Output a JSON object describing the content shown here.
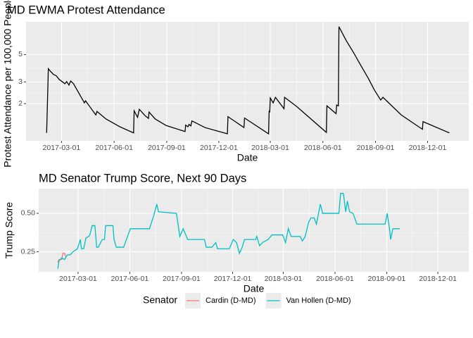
{
  "chart_data": [
    {
      "type": "line",
      "title": "MD EWMA Protest Attendance",
      "x_label": "Date",
      "y_label": "Protest Attendance per 100,000 People",
      "log_y": true,
      "grid": true,
      "color": "#000000",
      "xlim": [
        "2016-12-29",
        "2019-02-11"
      ],
      "xticks": [
        "2017-03-01",
        "2017-06-01",
        "2017-09-01",
        "2017-12-01",
        "2018-03-01",
        "2018-06-01",
        "2018-09-01",
        "2018-12-01"
      ],
      "ylim": [
        1,
        9.2
      ],
      "yticks": [
        2,
        3,
        5
      ],
      "x": [
        "2017-02-03",
        "2017-02-06",
        "2017-02-10",
        "2017-02-15",
        "2017-02-20",
        "2017-02-25",
        "2017-03-02",
        "2017-03-07",
        "2017-03-10",
        "2017-03-14",
        "2017-03-17",
        "2017-03-22",
        "2017-04-08",
        "2017-04-10",
        "2017-04-12",
        "2017-04-30",
        "2017-05-02",
        "2017-05-18",
        "2017-06-11",
        "2017-07-05",
        "2017-07-06",
        "2017-07-12",
        "2017-07-15",
        "2017-07-25",
        "2017-07-31",
        "2017-08-01",
        "2017-08-12",
        "2017-08-31",
        "2017-10-03",
        "2017-10-04",
        "2017-10-08",
        "2017-10-10",
        "2017-10-13",
        "2017-10-15",
        "2017-11-07",
        "2017-12-16",
        "2017-12-17",
        "2018-01-14",
        "2018-01-15",
        "2018-02-26",
        "2018-02-27",
        "2018-02-28",
        "2018-03-01",
        "2018-03-06",
        "2018-03-10",
        "2018-03-25",
        "2018-03-26",
        "2018-04-16",
        "2018-06-07",
        "2018-06-08",
        "2018-06-24",
        "2018-06-25",
        "2018-06-28",
        "2018-06-29",
        "2018-07-12",
        "2018-07-25",
        "2018-08-06",
        "2018-08-19",
        "2018-08-30",
        "2018-09-10",
        "2018-09-14",
        "2018-10-16",
        "2018-11-22",
        "2018-11-23",
        "2019-01-08"
      ],
      "values": [
        1.16,
        3.84,
        3.64,
        3.45,
        3.36,
        3.14,
        3.02,
        2.9,
        3.02,
        2.83,
        3.05,
        2.9,
        2.11,
        2.03,
        2.11,
        1.62,
        1.73,
        1.5,
        1.3,
        1.16,
        1.75,
        1.55,
        1.8,
        1.6,
        1.52,
        1.71,
        1.5,
        1.33,
        1.19,
        1.34,
        1.3,
        1.36,
        1.32,
        1.45,
        1.28,
        1.14,
        1.57,
        1.28,
        1.53,
        1.14,
        1.75,
        1.7,
        2.22,
        2.03,
        2.25,
        1.82,
        2.25,
        1.9,
        1.17,
        1.92,
        1.66,
        1.95,
        1.92,
        8.4,
        6.46,
        5.14,
        4.1,
        3.23,
        2.58,
        2.14,
        2.25,
        1.62,
        1.24,
        1.43,
        1.16
      ]
    },
    {
      "type": "line",
      "title": "MD Senator Trump Score, Next 90 Days",
      "x_label": "Date",
      "y_label": "Trump Score",
      "grid": true,
      "legend": "bottom",
      "legend_title": "Senator",
      "xlim": [
        "2016-12-21",
        "2019-01-25"
      ],
      "xticks": [
        "2017-03-01",
        "2017-06-01",
        "2017-09-01",
        "2017-12-01",
        "2018-03-01",
        "2018-06-01",
        "2018-09-01",
        "2018-12-01"
      ],
      "ylim": [
        0.12,
        0.66
      ],
      "yticks": [
        0.25,
        {
          "value": 0.5,
          "label": "0.50"
        }
      ],
      "series": [
        {
          "name": "Cardin (D-MD)",
          "color": "#F8766D",
          "x": [
            "2017-01-24",
            "2017-01-26",
            "2017-01-31",
            "2017-02-02",
            "2017-02-05",
            "2017-02-07"
          ],
          "values": [
            0.18,
            0.2,
            0.2,
            0.24,
            0.24,
            0.22
          ]
        },
        {
          "name": "Van Hollen (D-MD)",
          "color": "#00BFC4",
          "x": [
            "2017-01-24",
            "2017-01-26",
            "2017-01-31",
            "2017-02-05",
            "2017-02-10",
            "2017-02-15",
            "2017-02-20",
            "2017-02-28",
            "2017-03-05",
            "2017-03-07",
            "2017-03-11",
            "2017-03-15",
            "2017-03-20",
            "2017-03-22",
            "2017-03-26",
            "2017-03-31",
            "2017-04-03",
            "2017-04-06",
            "2017-04-13",
            "2017-04-17",
            "2017-04-19",
            "2017-05-02",
            "2017-05-04",
            "2017-05-08",
            "2017-05-21",
            "2017-06-02",
            "2017-07-06",
            "2017-07-14",
            "2017-07-19",
            "2017-07-22",
            "2017-08-23",
            "2017-08-29",
            "2017-09-04",
            "2017-09-12",
            "2017-10-12",
            "2017-10-15",
            "2017-10-25",
            "2017-11-01",
            "2017-11-04",
            "2017-11-14",
            "2017-11-19",
            "2017-11-25",
            "2017-12-02",
            "2017-12-08",
            "2017-12-13",
            "2017-12-18",
            "2017-12-22",
            "2018-01-11",
            "2018-01-13",
            "2018-01-16",
            "2018-01-18",
            "2018-01-23",
            "2018-02-02",
            "2018-02-09",
            "2018-02-28",
            "2018-03-05",
            "2018-03-10",
            "2018-03-15",
            "2018-03-31",
            "2018-04-04",
            "2018-04-09",
            "2018-04-15",
            "2018-04-19",
            "2018-04-25",
            "2018-04-29",
            "2018-05-06",
            "2018-05-10",
            "2018-06-08",
            "2018-06-11",
            "2018-06-16",
            "2018-06-20",
            "2018-06-23",
            "2018-06-27",
            "2018-07-03",
            "2018-07-10",
            "2018-08-29",
            "2018-09-02",
            "2018-09-06",
            "2018-09-08",
            "2018-09-12",
            "2018-09-24"
          ],
          "values": [
            0.14,
            0.19,
            0.21,
            0.2,
            0.23,
            0.23,
            0.25,
            0.27,
            0.33,
            0.27,
            0.27,
            0.34,
            0.35,
            0.36,
            0.42,
            0.42,
            0.28,
            0.28,
            0.33,
            0.33,
            0.42,
            0.42,
            0.33,
            0.28,
            0.28,
            0.4,
            0.4,
            0.49,
            0.56,
            0.51,
            0.5,
            0.35,
            0.4,
            0.33,
            0.33,
            0.28,
            0.28,
            0.31,
            0.27,
            0.27,
            0.27,
            0.27,
            0.33,
            0.31,
            0.24,
            0.28,
            0.33,
            0.33,
            0.35,
            0.31,
            0.29,
            0.31,
            0.33,
            0.36,
            0.36,
            0.31,
            0.4,
            0.35,
            0.35,
            0.32,
            0.35,
            0.44,
            0.47,
            0.47,
            0.43,
            0.56,
            0.5,
            0.5,
            0.63,
            0.63,
            0.51,
            0.58,
            0.51,
            0.5,
            0.43,
            0.43,
            0.5,
            0.4,
            0.33,
            0.4,
            0.4
          ]
        }
      ]
    }
  ]
}
